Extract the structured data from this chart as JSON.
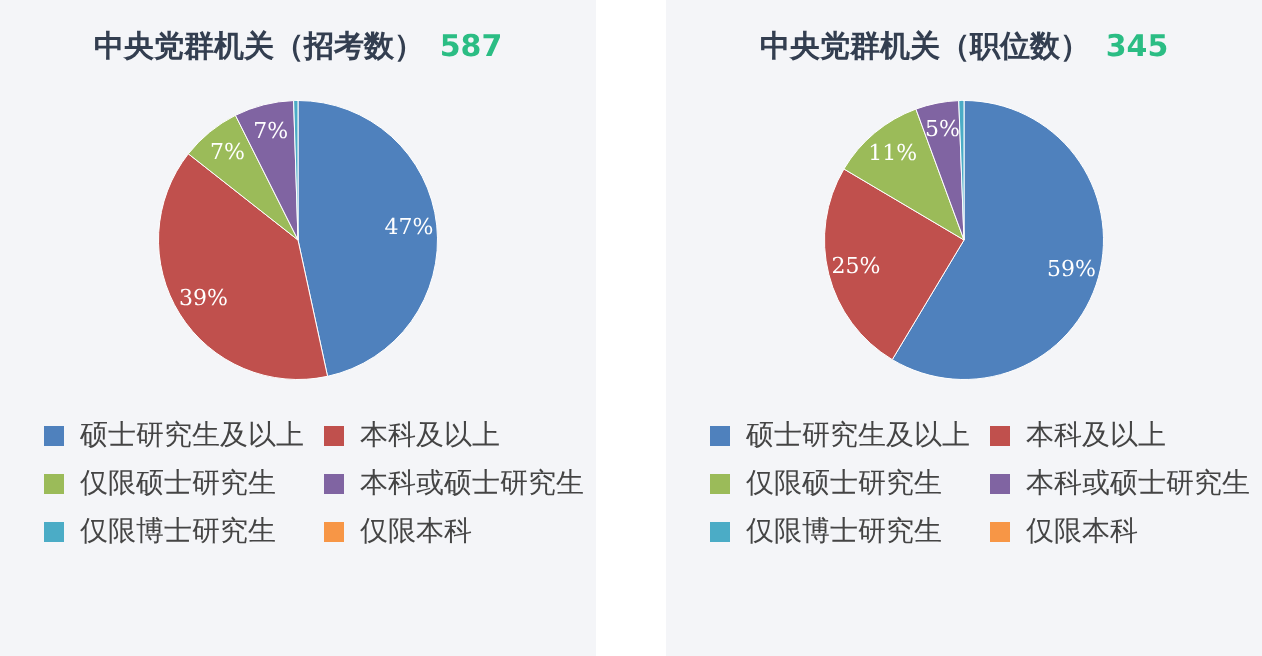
{
  "chart_data": [
    {
      "type": "pie",
      "title": "中央党群机关（招考数）",
      "subtitle": "587",
      "categories": [
        "硕士研究生及以上",
        "本科及以上",
        "仅限硕士研究生",
        "本科或硕士研究生",
        "仅限博士研究生",
        "仅限本科"
      ],
      "values": [
        46.6,
        39,
        7,
        6.9,
        0.5,
        0
      ],
      "colors": [
        "#4f81bd",
        "#c0504d",
        "#9bbb59",
        "#8064a2",
        "#4bacc6",
        "#f79646"
      ],
      "value_labels": [
        "47%",
        "39%",
        "7%",
        "7%",
        null,
        null
      ],
      "legend": "bottom"
    },
    {
      "type": "pie",
      "title": "中央党群机关（职位数）",
      "subtitle": "345",
      "categories": [
        "硕士研究生及以上",
        "本科及以上",
        "仅限硕士研究生",
        "本科或硕士研究生",
        "仅限博士研究生",
        "仅限本科"
      ],
      "values": [
        58.6,
        24.9,
        10.9,
        5,
        0.6,
        0
      ],
      "colors": [
        "#4f81bd",
        "#c0504d",
        "#9bbb59",
        "#8064a2",
        "#4bacc6",
        "#f79646"
      ],
      "value_labels": [
        "59%",
        "25%",
        "11%",
        "5%",
        null,
        null
      ],
      "legend": "bottom"
    }
  ]
}
